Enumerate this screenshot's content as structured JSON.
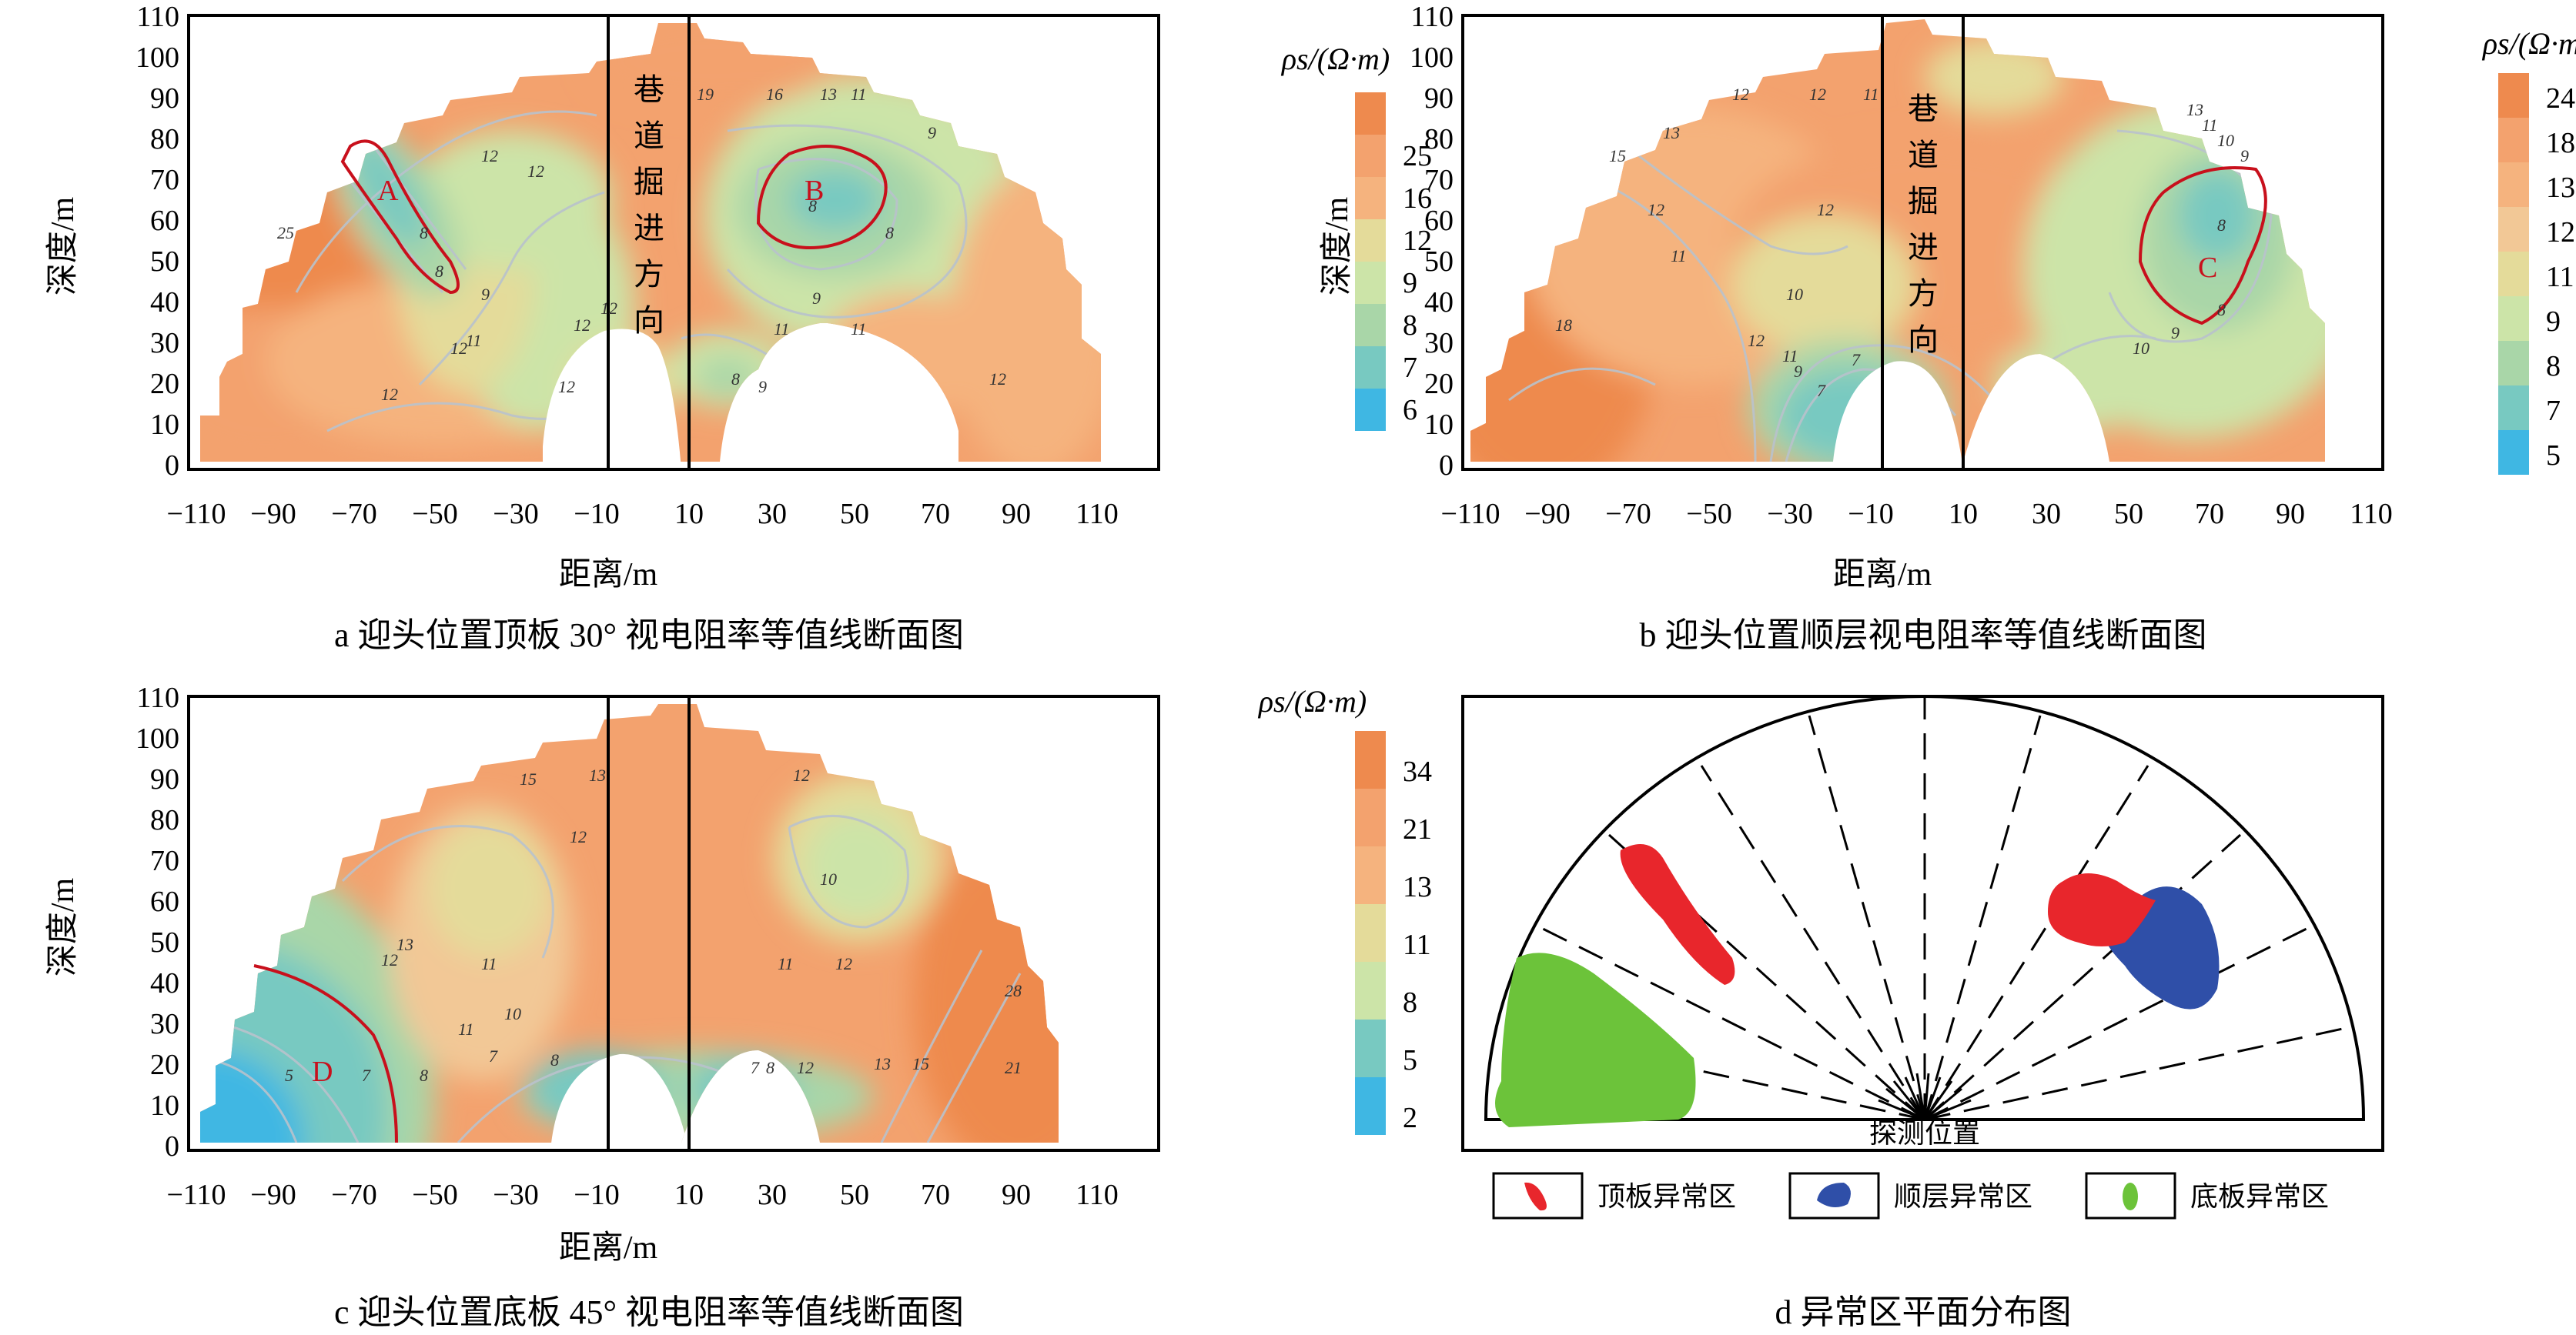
{
  "colors": {
    "orange_dark": "#EE8A4E",
    "orange": "#F3A26E",
    "orange_light": "#F5B37E",
    "tan": "#F2C896",
    "yellow": "#E4DB9A",
    "green_light": "#CCE4A8",
    "green": "#A9D6A8",
    "teal": "#78C9C1",
    "cyan": "#3FB7E3",
    "contour": "#B9C2CC",
    "anomaly_line": "#C8101C",
    "roof_anomaly": "#E8262C",
    "layer_anomaly": "#2F4FA8",
    "floor_anomaly": "#6CC33A"
  },
  "axes": {
    "ylabel": "深度/m",
    "xlabel": "距离/m",
    "yticks": [
      "110",
      "100",
      "90",
      "80",
      "70",
      "60",
      "50",
      "40",
      "30",
      "20",
      "10",
      "0"
    ],
    "xticks": [
      "−110",
      "−90",
      "−70",
      "−50",
      "−30",
      "−10",
      "10",
      "30",
      "50",
      "70",
      "90",
      "110"
    ],
    "colorbar_title": "ρs/(Ω·m)",
    "tunnel_label": [
      "巷",
      "道",
      "掘",
      "进",
      "方",
      "向"
    ]
  },
  "chart_data": [
    {
      "type": "heatmap",
      "caption": "a 迎头位置顶板 30° 视电阻率等值线断面图",
      "xlabel": "距离/m",
      "ylabel": "深度/m",
      "xlim": [
        -110,
        110
      ],
      "ylim": [
        0,
        110
      ],
      "colorbar_title": "ρs/(Ω·m)",
      "colorbar_ticks": [
        "25",
        "16",
        "12",
        "9",
        "8",
        "7",
        "6"
      ],
      "anomaly_labels": [
        "A",
        "B"
      ],
      "contour_labels": [
        "25",
        "12",
        "12",
        "19",
        "16",
        "13",
        "11",
        "9",
        "8",
        "8",
        "8",
        "8",
        "9",
        "9",
        "11",
        "11",
        "12",
        "11",
        "12",
        "12",
        "12",
        "8",
        "9",
        "12",
        "12"
      ]
    },
    {
      "type": "heatmap",
      "caption": "b 迎头位置顺层视电阻率等值线断面图",
      "xlabel": "距离/m",
      "ylabel": "深度/m",
      "xlim": [
        -110,
        110
      ],
      "ylim": [
        0,
        110
      ],
      "colorbar_title": "ρs/(Ω·m)",
      "colorbar_ticks": [
        "24",
        "18",
        "13",
        "12",
        "11",
        "9",
        "8",
        "7",
        "5"
      ],
      "anomaly_labels": [
        "C"
      ],
      "contour_labels": [
        "12",
        "13",
        "12",
        "11",
        "15",
        "12",
        "11",
        "12",
        "10",
        "12",
        "18",
        "9",
        "11",
        "7",
        "7",
        "10",
        "13",
        "11",
        "10",
        "9",
        "8",
        "8",
        "9"
      ]
    },
    {
      "type": "heatmap",
      "caption": "c 迎头位置底板 45° 视电阻率等值线断面图",
      "xlabel": "距离/m",
      "ylabel": "深度/m",
      "xlim": [
        -110,
        110
      ],
      "ylim": [
        0,
        110
      ],
      "colorbar_title": "ρs/(Ω·m)",
      "colorbar_ticks": [
        "34",
        "21",
        "13",
        "11",
        "8",
        "5",
        "2"
      ],
      "anomaly_labels": [
        "D"
      ],
      "contour_labels": [
        "15",
        "13",
        "12",
        "12",
        "10",
        "13",
        "12",
        "11",
        "11",
        "12",
        "10",
        "11",
        "7",
        "8",
        "5",
        "7",
        "8",
        "7",
        "8",
        "12",
        "13",
        "15",
        "21",
        "28"
      ]
    },
    {
      "type": "map",
      "caption": "d 异常区平面分布图",
      "center_label": "探测位置",
      "legend": [
        "顶板异常区",
        "顺层异常区",
        "底板异常区"
      ]
    }
  ]
}
